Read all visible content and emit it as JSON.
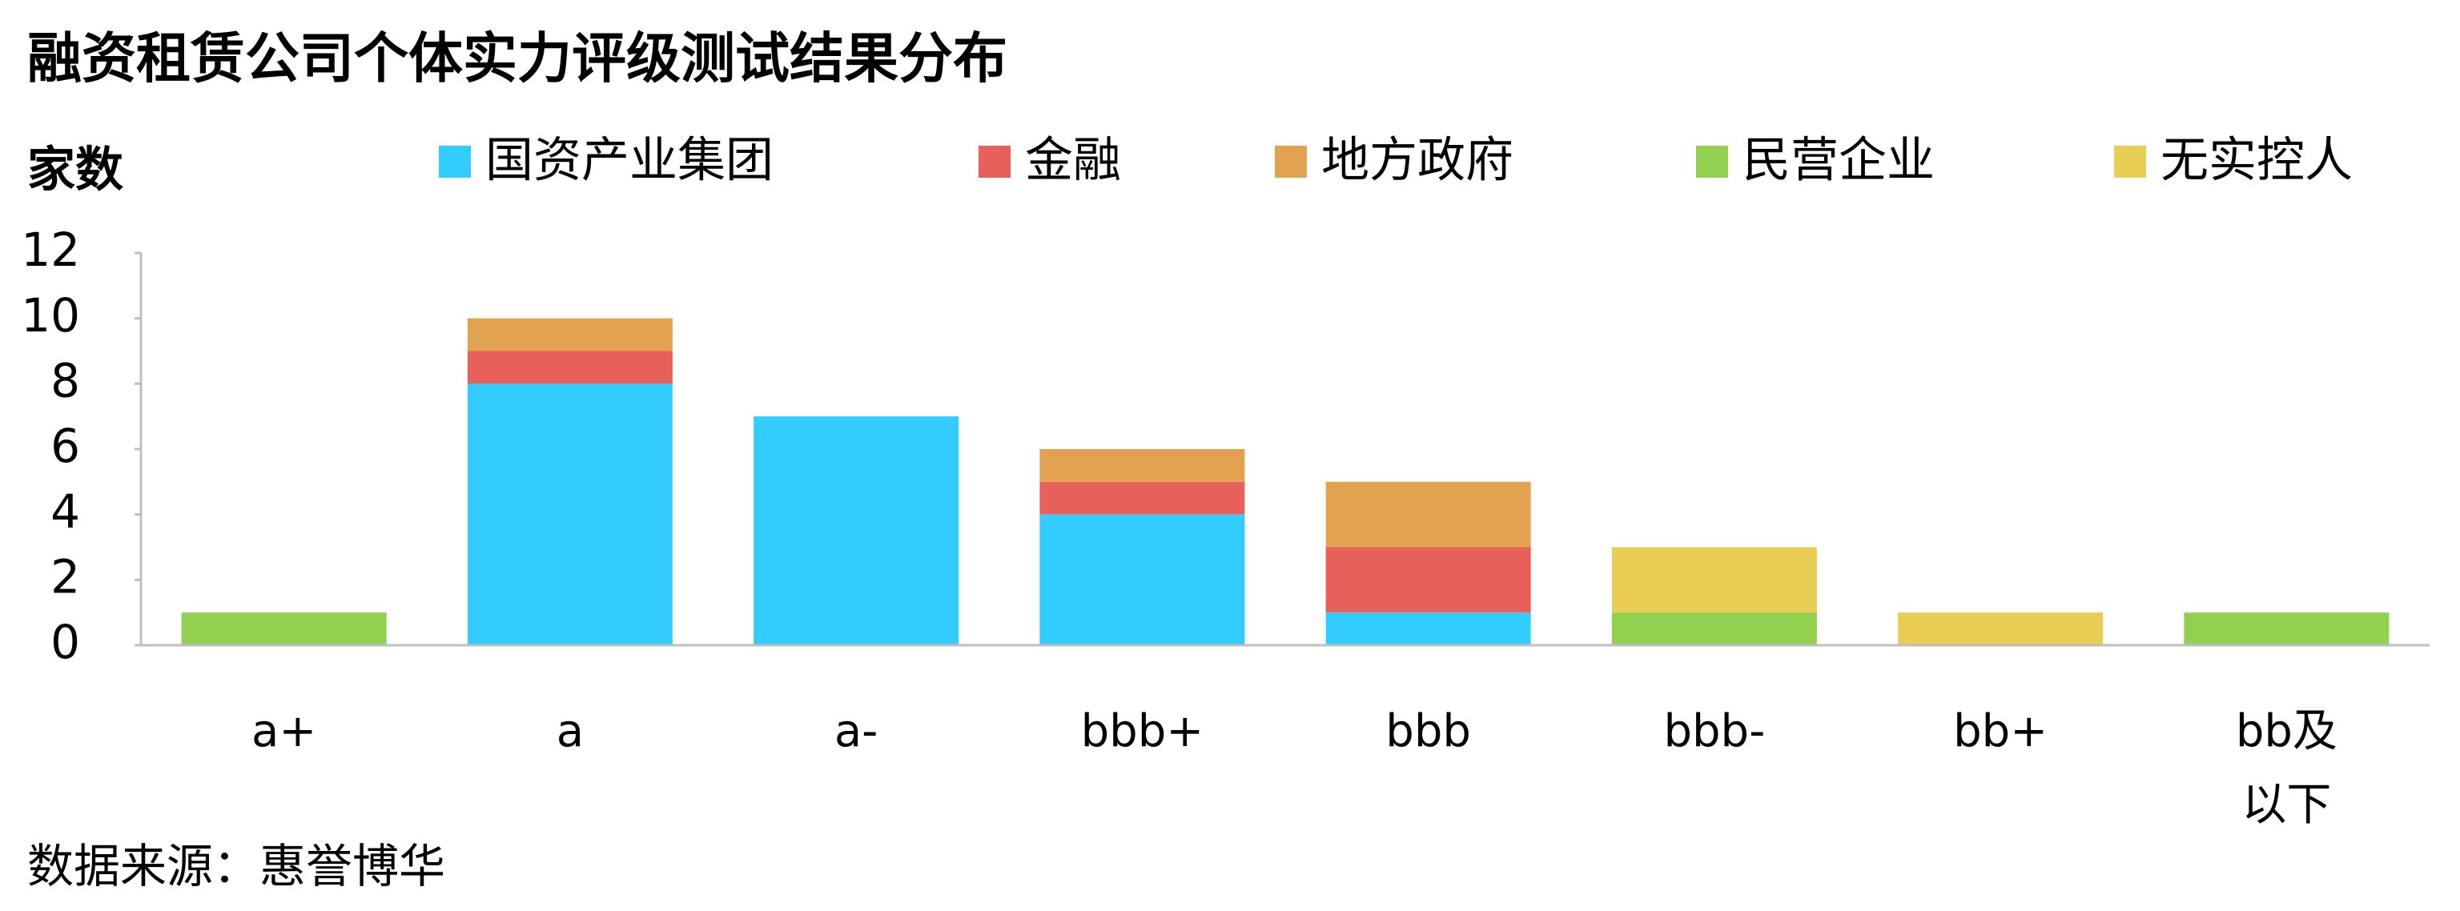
{
  "chart_data": {
    "type": "bar",
    "stacked": true,
    "title": "融资租赁公司个体实力评级测试结果分布",
    "y_label": "家数",
    "source": "数据来源：惠誉博华",
    "categories": [
      "a+",
      "a",
      "a-",
      "bbb+",
      "bbb",
      "bbb-",
      "bb+",
      "bb及以下"
    ],
    "series": [
      {
        "name": "国资产业集团",
        "color": "#33ccff",
        "values": [
          0,
          8,
          7,
          4,
          1,
          0,
          0,
          0
        ]
      },
      {
        "name": "金融",
        "color": "#e8605a",
        "values": [
          0,
          1,
          0,
          1,
          2,
          0,
          0,
          0
        ]
      },
      {
        "name": "地方政府",
        "color": "#e3a24f",
        "values": [
          0,
          1,
          0,
          1,
          2,
          0,
          0,
          0
        ]
      },
      {
        "name": "民营企业",
        "color": "#92d050",
        "values": [
          1,
          0,
          0,
          0,
          0,
          1,
          0,
          1
        ]
      },
      {
        "name": "无实控人",
        "color": "#e8ce55",
        "values": [
          0,
          0,
          0,
          0,
          0,
          2,
          1,
          0
        ]
      }
    ],
    "ylim": [
      0,
      12
    ],
    "yticks": [
      0,
      2,
      4,
      6,
      8,
      10,
      12
    ],
    "grid": false
  }
}
